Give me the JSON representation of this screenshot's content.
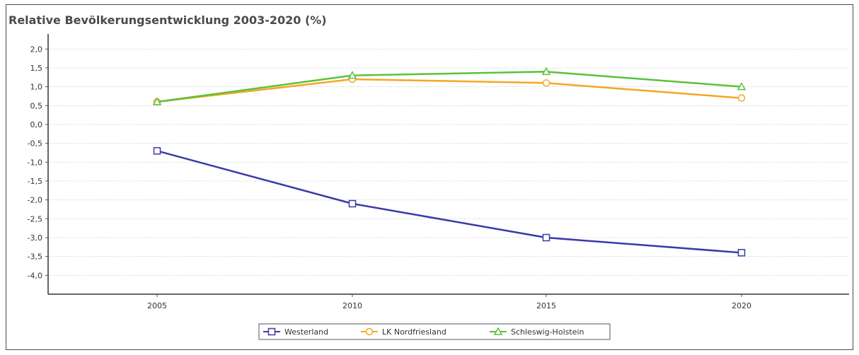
{
  "chart_data": {
    "type": "line",
    "title": "Relative Bevölkerungsentwicklung 2003-2020 (%)",
    "xlabel": "",
    "ylabel": "",
    "categories": [
      "2005",
      "2010",
      "2015",
      "2020"
    ],
    "ylim": [
      -4.5,
      2.25
    ],
    "yticks": [
      "2,0",
      "1,5",
      "1,0",
      "0,5",
      "0,0",
      "-0,5",
      "-1,0",
      "-1,5",
      "-2,0",
      "-2,5",
      "-3,0",
      "-3,5",
      "-4,0"
    ],
    "ytick_values": [
      2.0,
      1.5,
      1.0,
      0.5,
      0.0,
      -0.5,
      -1.0,
      -1.5,
      -2.0,
      -2.5,
      -3.0,
      -3.5,
      -4.0
    ],
    "grid": true,
    "legend_position": "bottom",
    "series": [
      {
        "name": "Westerland",
        "values": [
          -0.7,
          -2.1,
          -3.0,
          -3.4
        ],
        "color": "#3a3aa8",
        "marker": "square"
      },
      {
        "name": "LK Nordfriesland",
        "values": [
          0.6,
          1.2,
          1.1,
          0.7
        ],
        "color": "#f5a623",
        "marker": "circle"
      },
      {
        "name": "Schleswig-Holstein",
        "values": [
          0.6,
          1.3,
          1.4,
          1.0
        ],
        "color": "#59c23a",
        "marker": "triangle"
      }
    ]
  }
}
